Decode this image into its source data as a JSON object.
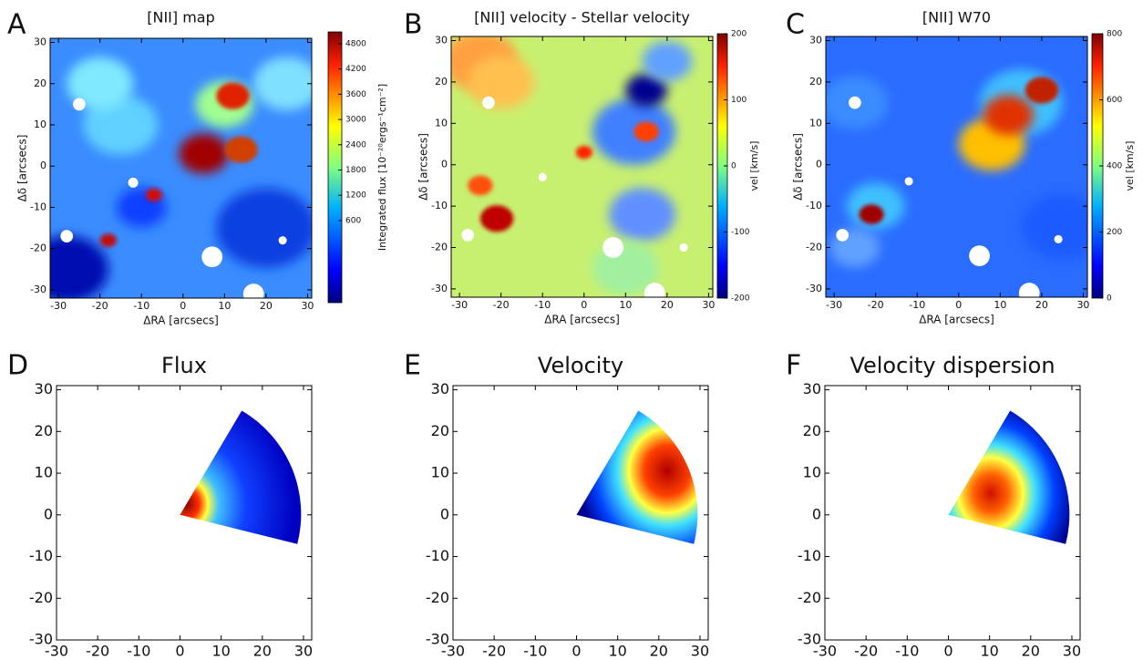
{
  "chart_data": [
    {
      "type": "heatmap",
      "panel": "A",
      "title": "[NII] map",
      "xlabel": "ΔRA [arcsecs]",
      "ylabel": "Δδ [arcsecs]",
      "xlim": [
        -32,
        31
      ],
      "ylim": [
        -32,
        31
      ],
      "xticks": [
        -30,
        -20,
        -10,
        0,
        10,
        20,
        30
      ],
      "yticks": [
        -30,
        -20,
        -10,
        0,
        10,
        20,
        30
      ],
      "colorbar_label": "Integrated flux [10⁻²⁰ergs⁻¹cm⁻²]",
      "clim": [
        -1350,
        5080
      ],
      "cticks": [
        600,
        1200,
        1800,
        2400,
        3000,
        3600,
        4200,
        4800
      ]
    },
    {
      "type": "heatmap",
      "panel": "B",
      "title": "[NII] velocity - Stellar velocity",
      "xlabel": "ΔRA [arcsecs]",
      "ylabel": "Δδ [arcsecs]",
      "xlim": [
        -32,
        31
      ],
      "ylim": [
        -32,
        31
      ],
      "xticks": [
        -30,
        -20,
        -10,
        0,
        10,
        20,
        30
      ],
      "yticks": [
        -30,
        -20,
        -10,
        0,
        10,
        20,
        30
      ],
      "colorbar_label": "vel [km/s]",
      "clim": [
        -200,
        200
      ],
      "cticks": [
        -200,
        -100,
        0,
        100,
        200
      ]
    },
    {
      "type": "heatmap",
      "panel": "C",
      "title": "[NII] W70",
      "xlabel": "ΔRA [arcsecs]",
      "ylabel": "Δδ [arcsecs]",
      "xlim": [
        -32,
        31
      ],
      "ylim": [
        -32,
        31
      ],
      "xticks": [
        -30,
        -20,
        -10,
        0,
        10,
        20,
        30
      ],
      "yticks": [
        -30,
        -20,
        -10,
        0,
        10,
        20,
        30
      ],
      "colorbar_label": "vel [km/s]",
      "clim": [
        0,
        800
      ],
      "cticks": [
        0,
        200,
        400,
        600,
        800
      ]
    },
    {
      "type": "model",
      "panel": "D",
      "title": "Flux",
      "xlim": [
        -30,
        32
      ],
      "ylim": [
        -30,
        31
      ],
      "xticks": [
        -30,
        -20,
        -10,
        0,
        10,
        20,
        30
      ],
      "yticks": [
        -30,
        -20,
        -10,
        0,
        10,
        20,
        30
      ]
    },
    {
      "type": "model",
      "panel": "E",
      "title": "Velocity",
      "xlim": [
        -30,
        32
      ],
      "ylim": [
        -30,
        31
      ],
      "xticks": [
        -30,
        -20,
        -10,
        0,
        10,
        20,
        30
      ],
      "yticks": [
        -30,
        -20,
        -10,
        0,
        10,
        20,
        30
      ]
    },
    {
      "type": "model",
      "panel": "F",
      "title": "Velocity dispersion",
      "xlim": [
        -30,
        32
      ],
      "ylim": [
        -30,
        31
      ],
      "xticks": [
        -30,
        -20,
        -10,
        0,
        10,
        20,
        30
      ],
      "yticks": [
        -30,
        -20,
        -10,
        0,
        10,
        20,
        30
      ]
    }
  ]
}
